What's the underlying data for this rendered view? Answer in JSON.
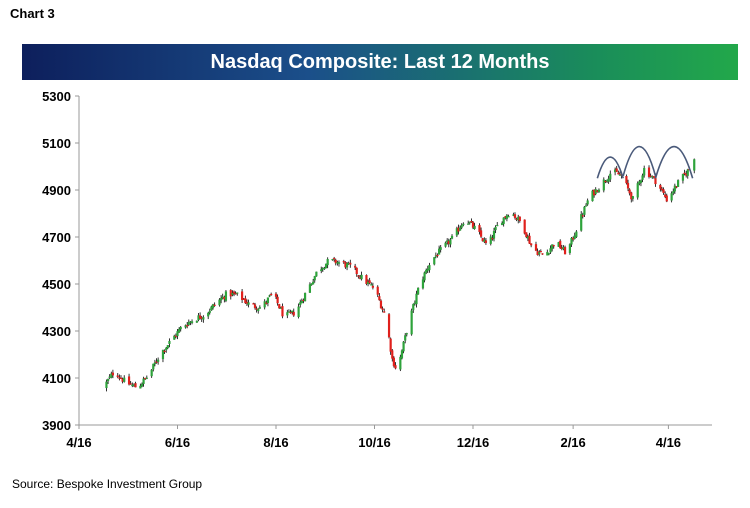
{
  "header": {
    "chart_label": "Chart 3"
  },
  "source": "Source: Bespoke Investment Group",
  "chart_data": {
    "type": "candlestick",
    "title": "Nasdaq Composite: Last 12 Months",
    "xlabel": "",
    "ylabel": "",
    "ylim": [
      3900,
      5300
    ],
    "yticks": [
      3900,
      4100,
      4300,
      4500,
      4700,
      4900,
      5100,
      5300
    ],
    "xticks": [
      "4/16",
      "6/16",
      "8/16",
      "10/16",
      "12/16",
      "2/16",
      "4/16"
    ],
    "grid": false,
    "colors": {
      "up": "#2ea33b",
      "down": "#e0201c",
      "wick": "#000000",
      "arc": "#4a5a7a"
    },
    "keypoints": [
      [
        "4/16",
        4060
      ],
      [
        "4/23",
        4130
      ],
      [
        "4/30",
        4080
      ],
      [
        "5/7",
        4060
      ],
      [
        "5/14",
        4110
      ],
      [
        "5/21",
        4200
      ],
      [
        "5/28",
        4260
      ],
      [
        "6/4",
        4320
      ],
      [
        "6/11",
        4350
      ],
      [
        "6/18",
        4370
      ],
      [
        "6/25",
        4420
      ],
      [
        "7/2",
        4460
      ],
      [
        "7/9",
        4450
      ],
      [
        "7/16",
        4410
      ],
      [
        "7/23",
        4400
      ],
      [
        "7/30",
        4460
      ],
      [
        "8/6",
        4360
      ],
      [
        "8/13",
        4380
      ],
      [
        "8/20",
        4470
      ],
      [
        "8/27",
        4560
      ],
      [
        "9/3",
        4600
      ],
      [
        "9/10",
        4590
      ],
      [
        "9/17",
        4570
      ],
      [
        "9/24",
        4520
      ],
      [
        "10/1",
        4480
      ],
      [
        "10/8",
        4360
      ],
      [
        "10/12",
        4180
      ],
      [
        "10/15",
        4130
      ],
      [
        "10/22",
        4330
      ],
      [
        "10/29",
        4500
      ],
      [
        "11/5",
        4600
      ],
      [
        "11/12",
        4650
      ],
      [
        "11/19",
        4700
      ],
      [
        "11/26",
        4780
      ],
      [
        "12/3",
        4730
      ],
      [
        "12/10",
        4660
      ],
      [
        "12/17",
        4760
      ],
      [
        "12/24",
        4810
      ],
      [
        "12/31",
        4760
      ],
      [
        "1/7",
        4650
      ],
      [
        "1/14",
        4620
      ],
      [
        "1/21",
        4680
      ],
      [
        "1/28",
        4630
      ],
      [
        "2/4",
        4750
      ],
      [
        "2/11",
        4870
      ],
      [
        "2/18",
        4920
      ],
      [
        "2/25",
        4980
      ],
      [
        "3/3",
        4960
      ],
      [
        "3/10",
        4860
      ],
      [
        "3/17",
        4990
      ],
      [
        "3/24",
        4940
      ],
      [
        "3/31",
        4860
      ],
      [
        "4/7",
        4930
      ],
      [
        "4/14",
        4990
      ],
      [
        "4/18",
        5060
      ]
    ],
    "annotations": [
      {
        "type": "arc",
        "x_from": "2/16",
        "x_to": "3/4"
      },
      {
        "type": "arc",
        "x_from": "3/4",
        "x_to": "3/24"
      },
      {
        "type": "arc",
        "x_from": "3/24",
        "x_to": "4/16"
      }
    ]
  }
}
